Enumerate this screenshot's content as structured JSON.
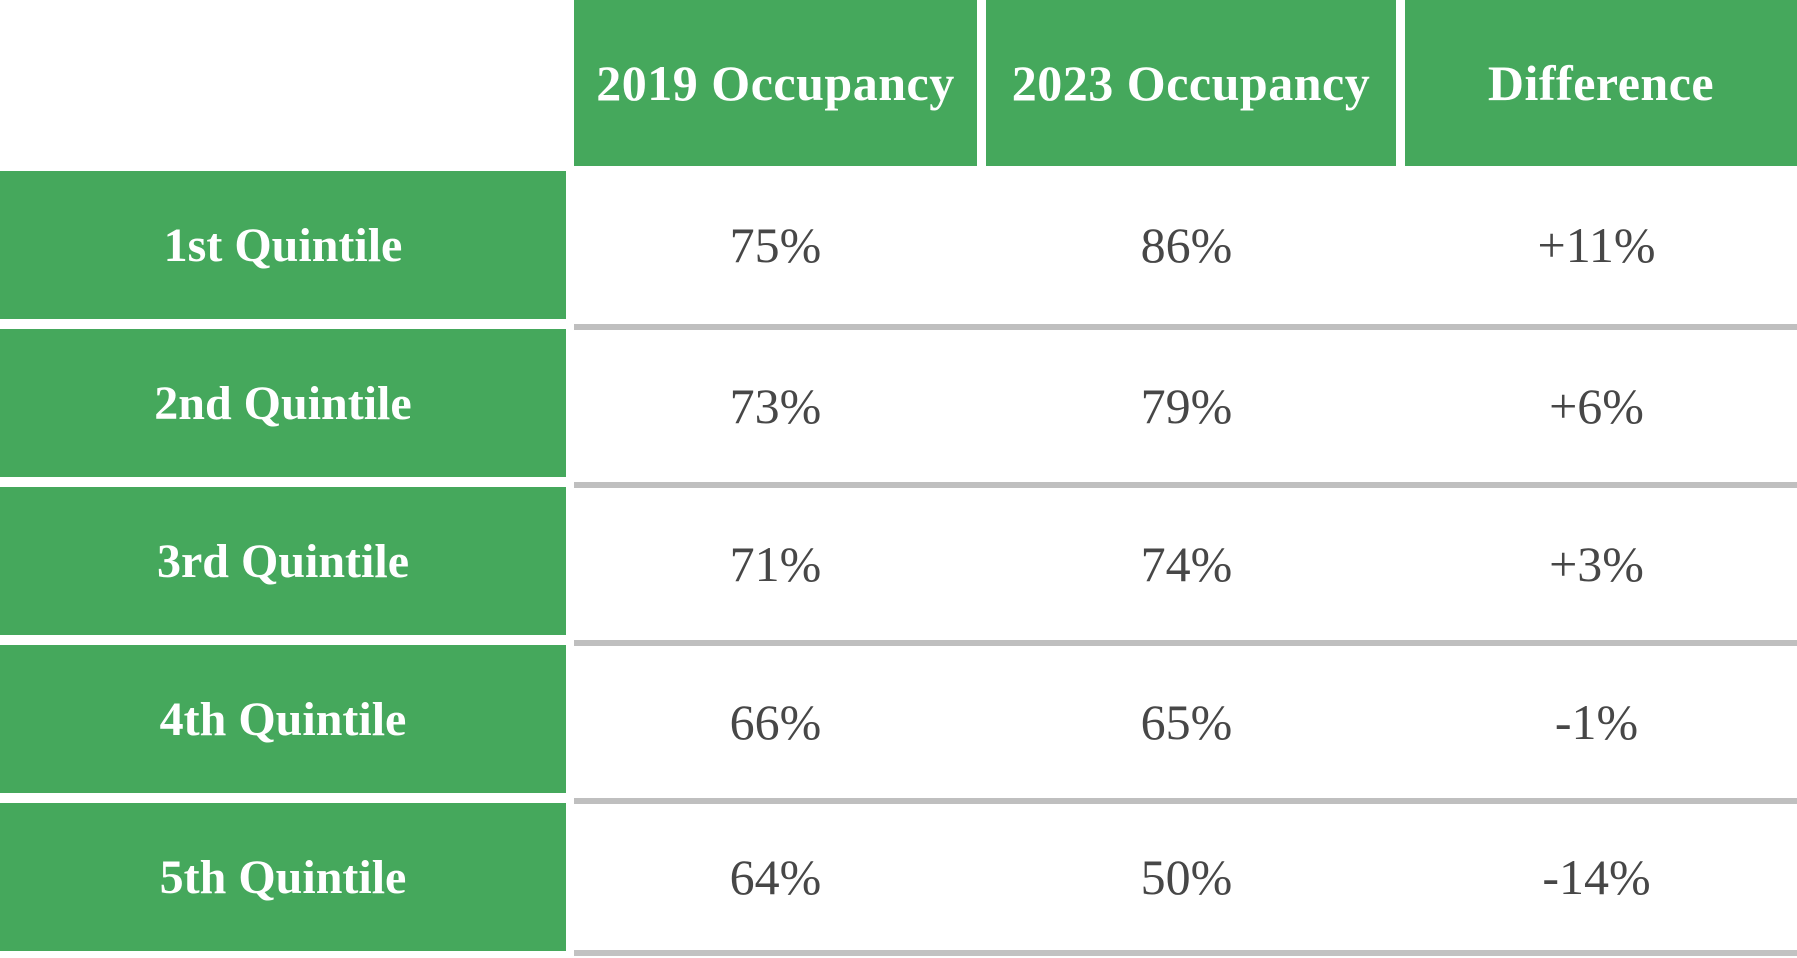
{
  "table": {
    "corner_label": "",
    "column_headers": [
      "2019 Occupancy",
      "2023 Occupancy",
      "Difference"
    ],
    "rows": [
      {
        "label": "1st Quintile",
        "occ2019": "75%",
        "occ2023": "86%",
        "difference": "+11%"
      },
      {
        "label": "2nd Quintile",
        "occ2019": "73%",
        "occ2023": "79%",
        "difference": "+6%"
      },
      {
        "label": "3rd Quintile",
        "occ2019": "71%",
        "occ2023": "74%",
        "difference": "+3%"
      },
      {
        "label": "4th Quintile",
        "occ2019": "66%",
        "occ2023": "65%",
        "difference": "-1%"
      },
      {
        "label": "5th Quintile",
        "occ2019": "64%",
        "occ2023": "50%",
        "difference": "-14%"
      }
    ]
  },
  "chart_data": {
    "type": "table",
    "categories": [
      "1st Quintile",
      "2nd Quintile",
      "3rd Quintile",
      "4th Quintile",
      "5th Quintile"
    ],
    "columns": [
      "2019 Occupancy",
      "2023 Occupancy",
      "Difference"
    ],
    "series": [
      {
        "name": "2019 Occupancy",
        "values": [
          75,
          73,
          71,
          66,
          64
        ]
      },
      {
        "name": "2023 Occupancy",
        "values": [
          86,
          79,
          74,
          65,
          50
        ]
      },
      {
        "name": "Difference",
        "values": [
          11,
          6,
          3,
          -1,
          -14
        ]
      }
    ],
    "unit": "percent",
    "layout": "header-row-green, label-column-green, gray-rules-between-data-rows"
  },
  "colors": {
    "header_green": "#45a85c",
    "separator_gray": "#bfbfbf",
    "value_text": "#474747",
    "header_text": "#ffffff",
    "background": "#ffffff"
  }
}
